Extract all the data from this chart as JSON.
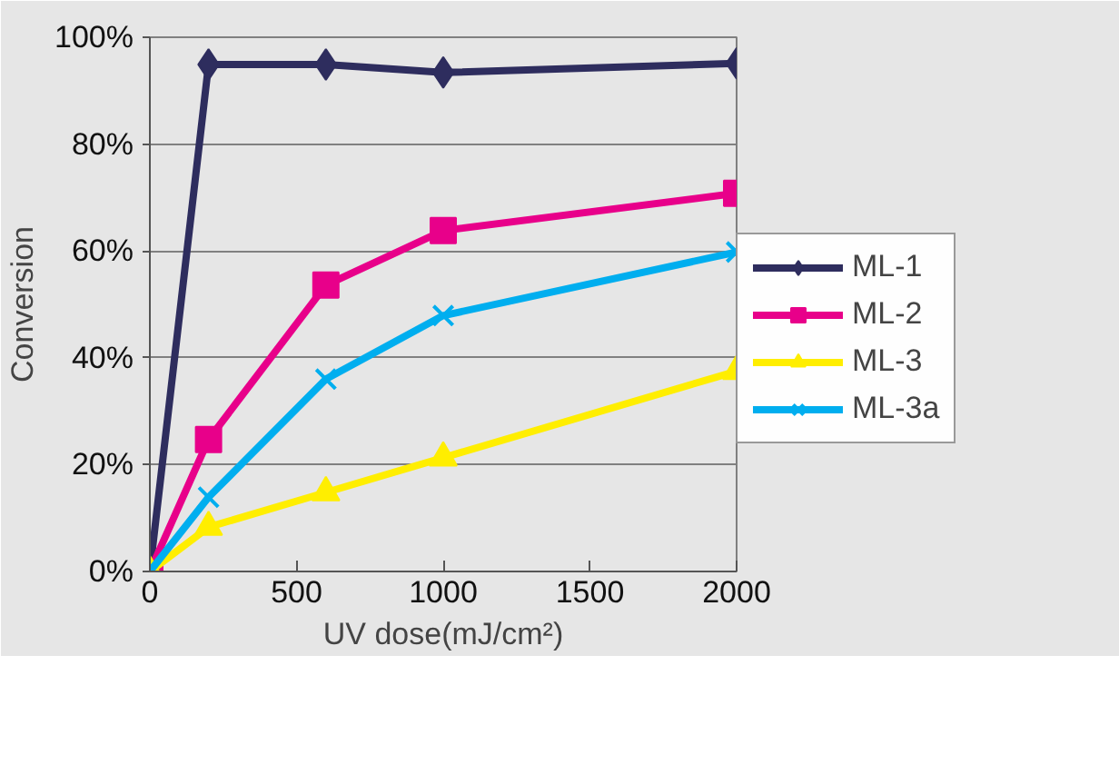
{
  "chart_data": {
    "type": "line",
    "xlabel": "UV dose(mJ/cm²)",
    "ylabel": "Conversion",
    "x": [
      0,
      200,
      600,
      1000,
      2000
    ],
    "series": [
      {
        "name": "ML-1",
        "color": "#2e2d5e",
        "marker": "diamond",
        "values": [
          0,
          94.9,
          94.9,
          93.4,
          95.1
        ]
      },
      {
        "name": "ML-2",
        "color": "#e8008a",
        "marker": "square",
        "values": [
          0,
          24.7,
          53.6,
          63.8,
          70.8
        ]
      },
      {
        "name": "ML-3",
        "color": "#ffee00",
        "marker": "triangle",
        "values": [
          0,
          8.3,
          14.8,
          21.3,
          37.5
        ]
      },
      {
        "name": "ML-3a",
        "color": "#00aeef",
        "marker": "cross",
        "values": [
          0,
          13.9,
          36.0,
          47.9,
          59.8
        ]
      }
    ],
    "xlim": [
      0,
      2000
    ],
    "xticks": [
      0,
      500,
      1000,
      1500,
      2000
    ],
    "ylim": [
      0,
      100
    ],
    "yticks": [
      {
        "value": 0,
        "label": "0%"
      },
      {
        "value": 20,
        "label": "20%"
      },
      {
        "value": 40,
        "label": "40%"
      },
      {
        "value": 60,
        "label": "60%"
      },
      {
        "value": 80,
        "label": "80%"
      },
      {
        "value": 100,
        "label": "100%"
      }
    ],
    "grid": "y",
    "legend": "right"
  }
}
